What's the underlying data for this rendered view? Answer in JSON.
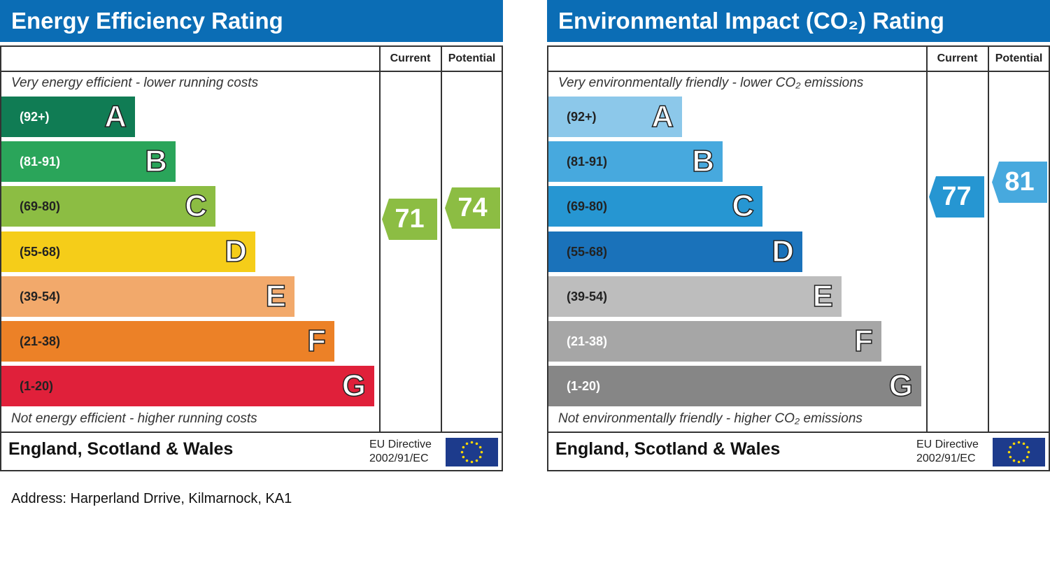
{
  "chart_data": [
    {
      "type": "bar",
      "title": "Energy Efficiency Rating",
      "columns": [
        "Current",
        "Potential"
      ],
      "top_note": "Very energy efficient - lower running costs",
      "bottom_note": "Not energy efficient - higher running costs",
      "bands": [
        {
          "letter": "A",
          "range": "(92+)",
          "color": "#107c54",
          "text": "#fff"
        },
        {
          "letter": "B",
          "range": "(81-91)",
          "color": "#2aa55a",
          "text": "#fff"
        },
        {
          "letter": "C",
          "range": "(69-80)",
          "color": "#8cbd43",
          "text": "#222"
        },
        {
          "letter": "D",
          "range": "(55-68)",
          "color": "#f5cd19",
          "text": "#222"
        },
        {
          "letter": "E",
          "range": "(39-54)",
          "color": "#f2a96b",
          "text": "#222"
        },
        {
          "letter": "F",
          "range": "(21-38)",
          "color": "#ec8127",
          "text": "#222"
        },
        {
          "letter": "G",
          "range": "(1-20)",
          "color": "#e0203a",
          "text": "#222"
        }
      ],
      "current": {
        "value": 71,
        "color": "#8cbd43"
      },
      "potential": {
        "value": 74,
        "color": "#8cbd43"
      },
      "footer": "England, Scotland & Wales",
      "directive": [
        "EU Directive",
        "2002/91/EC"
      ]
    },
    {
      "type": "bar",
      "title": "Environmental Impact (CO₂) Rating",
      "columns": [
        "Current",
        "Potential"
      ],
      "top_note": "Very environmentally friendly - lower CO₂ emissions",
      "bottom_note": "Not environmentally friendly - higher CO₂ emissions",
      "bands": [
        {
          "letter": "A",
          "range": "(92+)",
          "color": "#8cc8ea",
          "text": "#222"
        },
        {
          "letter": "B",
          "range": "(81-91)",
          "color": "#47a9de",
          "text": "#222"
        },
        {
          "letter": "C",
          "range": "(69-80)",
          "color": "#2696d2",
          "text": "#222"
        },
        {
          "letter": "D",
          "range": "(55-68)",
          "color": "#1a72ba",
          "text": "#222"
        },
        {
          "letter": "E",
          "range": "(39-54)",
          "color": "#bdbdbd",
          "text": "#222"
        },
        {
          "letter": "F",
          "range": "(21-38)",
          "color": "#a6a6a6",
          "text": "#fff"
        },
        {
          "letter": "G",
          "range": "(1-20)",
          "color": "#868686",
          "text": "#fff"
        }
      ],
      "current": {
        "value": 77,
        "color": "#2696d2"
      },
      "potential": {
        "value": 81,
        "color": "#47a9de"
      },
      "footer": "England, Scotland & Wales",
      "directive": [
        "EU Directive",
        "2002/91/EC"
      ]
    }
  ],
  "address": "Address: Harperland Drrive, Kilmarnock, KA1"
}
